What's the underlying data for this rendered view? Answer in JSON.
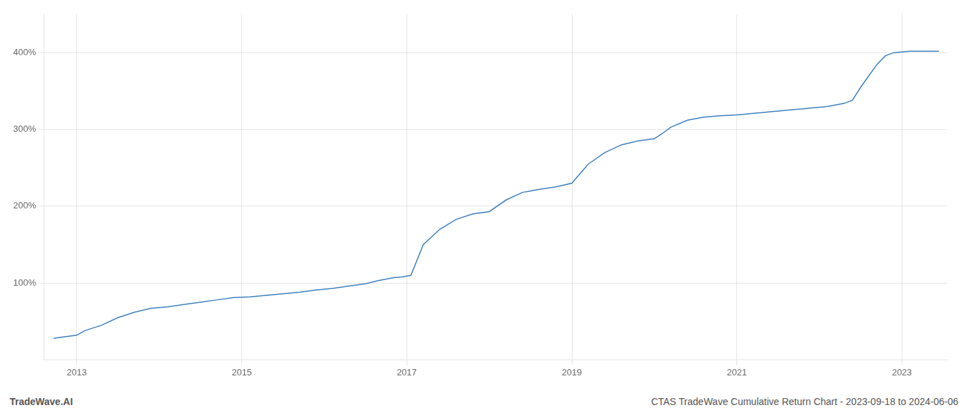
{
  "chart_data": {
    "type": "line",
    "title": "CTAS TradeWave Cumulative Return Chart - 2023-09-18 to 2024-06-06",
    "annotations": [
      "TradeWave.AI"
    ],
    "color": "#3a7ebf",
    "x": [
      2012.72,
      2013.0,
      2013.1,
      2013.3,
      2013.5,
      2013.7,
      2013.9,
      2014.1,
      2014.3,
      2014.5,
      2014.7,
      2014.9,
      2015.1,
      2015.3,
      2015.5,
      2015.7,
      2015.9,
      2016.1,
      2016.3,
      2016.5,
      2016.65,
      2016.75,
      2016.85,
      2016.95,
      2017.05,
      2017.2,
      2017.4,
      2017.6,
      2017.8,
      2018.0,
      2018.2,
      2018.4,
      2018.5,
      2018.6,
      2018.8,
      2019.0,
      2019.2,
      2019.4,
      2019.6,
      2019.8,
      2020.0,
      2020.1,
      2020.2,
      2020.4,
      2020.6,
      2020.8,
      2021.0,
      2021.1,
      2021.2,
      2021.3,
      2021.4,
      2021.5,
      2021.6,
      2021.7,
      2021.8,
      2021.9,
      2022.0,
      2022.1,
      2022.2,
      2022.3,
      2022.4,
      2022.5,
      2022.6,
      2022.7,
      2022.8,
      2022.9,
      2023.0,
      2023.1,
      2023.2,
      2023.3,
      2023.45
    ],
    "values": [
      28,
      32,
      38,
      45,
      55,
      62,
      67,
      69,
      72,
      75,
      78,
      81,
      82,
      84,
      86,
      88,
      91,
      93,
      96,
      99,
      103,
      105,
      107,
      108,
      110,
      150,
      170,
      183,
      190,
      193,
      208,
      218,
      220,
      222,
      225,
      230,
      255,
      270,
      280,
      285,
      288,
      295,
      303,
      312,
      316,
      318,
      319,
      320,
      321,
      322,
      323,
      324,
      325,
      326,
      327,
      328,
      329,
      330,
      332,
      334,
      338,
      355,
      370,
      385,
      396,
      400,
      401,
      402,
      402,
      402,
      402
    ],
    "xlim": [
      2012.6,
      2023.55
    ],
    "xticks": [
      2013,
      2015,
      2017,
      2019,
      2021,
      2023
    ],
    "ylim": [
      0,
      450
    ],
    "yticks": [
      {
        "value": 100,
        "label": "100%"
      },
      {
        "value": 200,
        "label": "200%"
      },
      {
        "value": 300,
        "label": "300%"
      },
      {
        "value": 400,
        "label": "400%"
      }
    ],
    "grid": true
  }
}
